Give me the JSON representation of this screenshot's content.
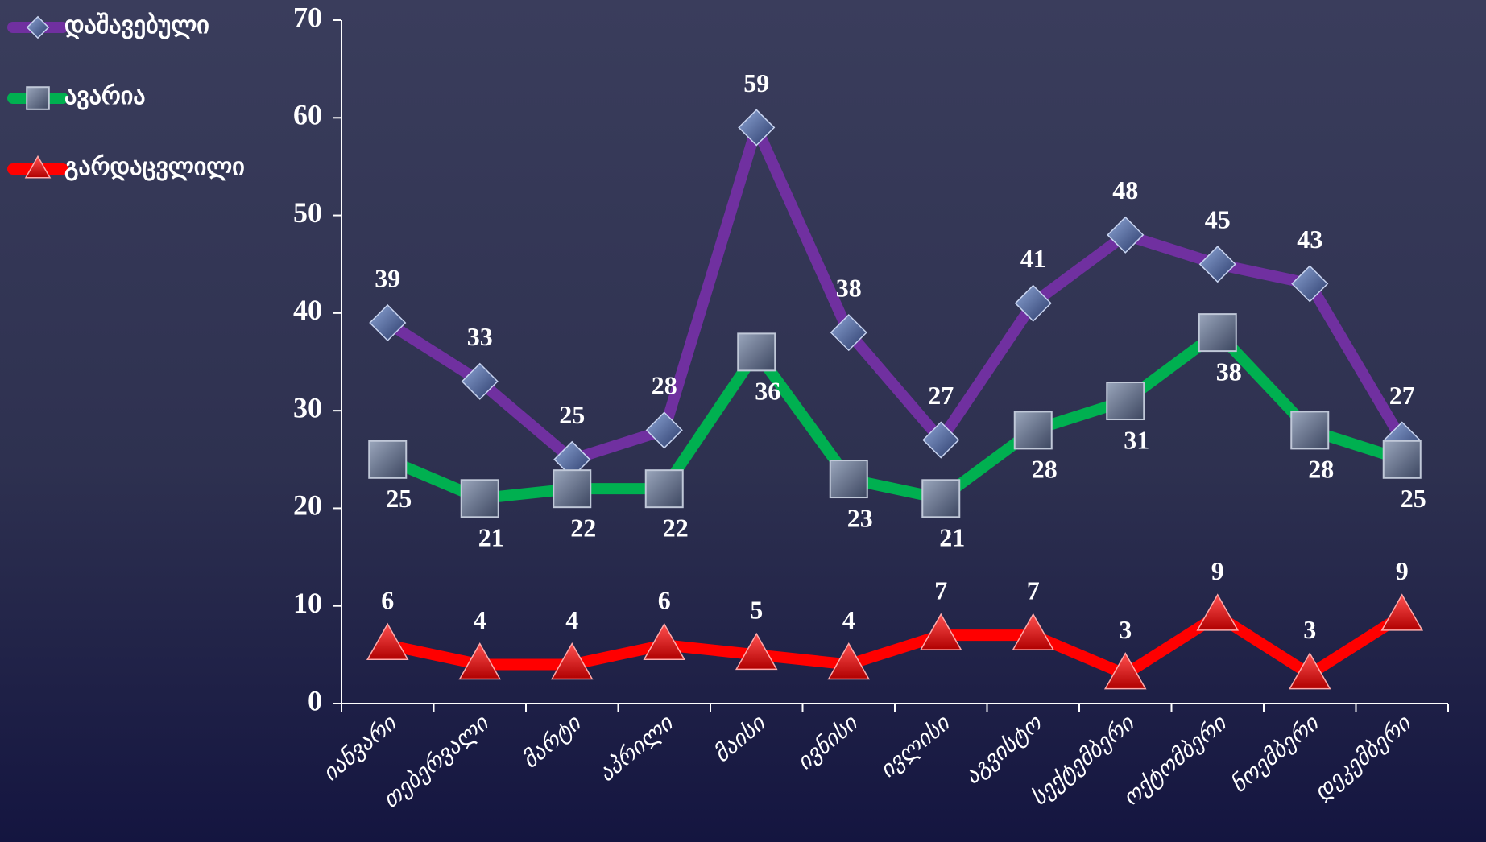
{
  "chart_data": {
    "type": "line",
    "categories": [
      "იანვარი",
      "თებერვალი",
      "მარტი",
      "აპრილი",
      "მაისი",
      "ივნისი",
      "ივლისი",
      "აგვისტო",
      "სექტემბერი",
      "ოქტომბერი",
      "ნოემბერი",
      "დეკემბერი"
    ],
    "series": [
      {
        "name": "დაშავებული",
        "color": "#7030a0",
        "marker": "diamond",
        "values": [
          39,
          33,
          25,
          28,
          59,
          38,
          27,
          41,
          48,
          45,
          43,
          27
        ]
      },
      {
        "name": "ავარია",
        "color": "#00b050",
        "marker": "square",
        "values": [
          25,
          21,
          22,
          22,
          36,
          23,
          21,
          28,
          31,
          38,
          28,
          25
        ]
      },
      {
        "name": "გარდაცვლილი",
        "color": "#ff0000",
        "marker": "triangle",
        "values": [
          6,
          4,
          4,
          6,
          5,
          4,
          7,
          7,
          3,
          9,
          3,
          9
        ]
      }
    ],
    "ylim": [
      0,
      70
    ],
    "yticks": [
      0,
      10,
      20,
      30,
      40,
      50,
      60,
      70
    ],
    "grid": false,
    "legend": "top-left"
  }
}
